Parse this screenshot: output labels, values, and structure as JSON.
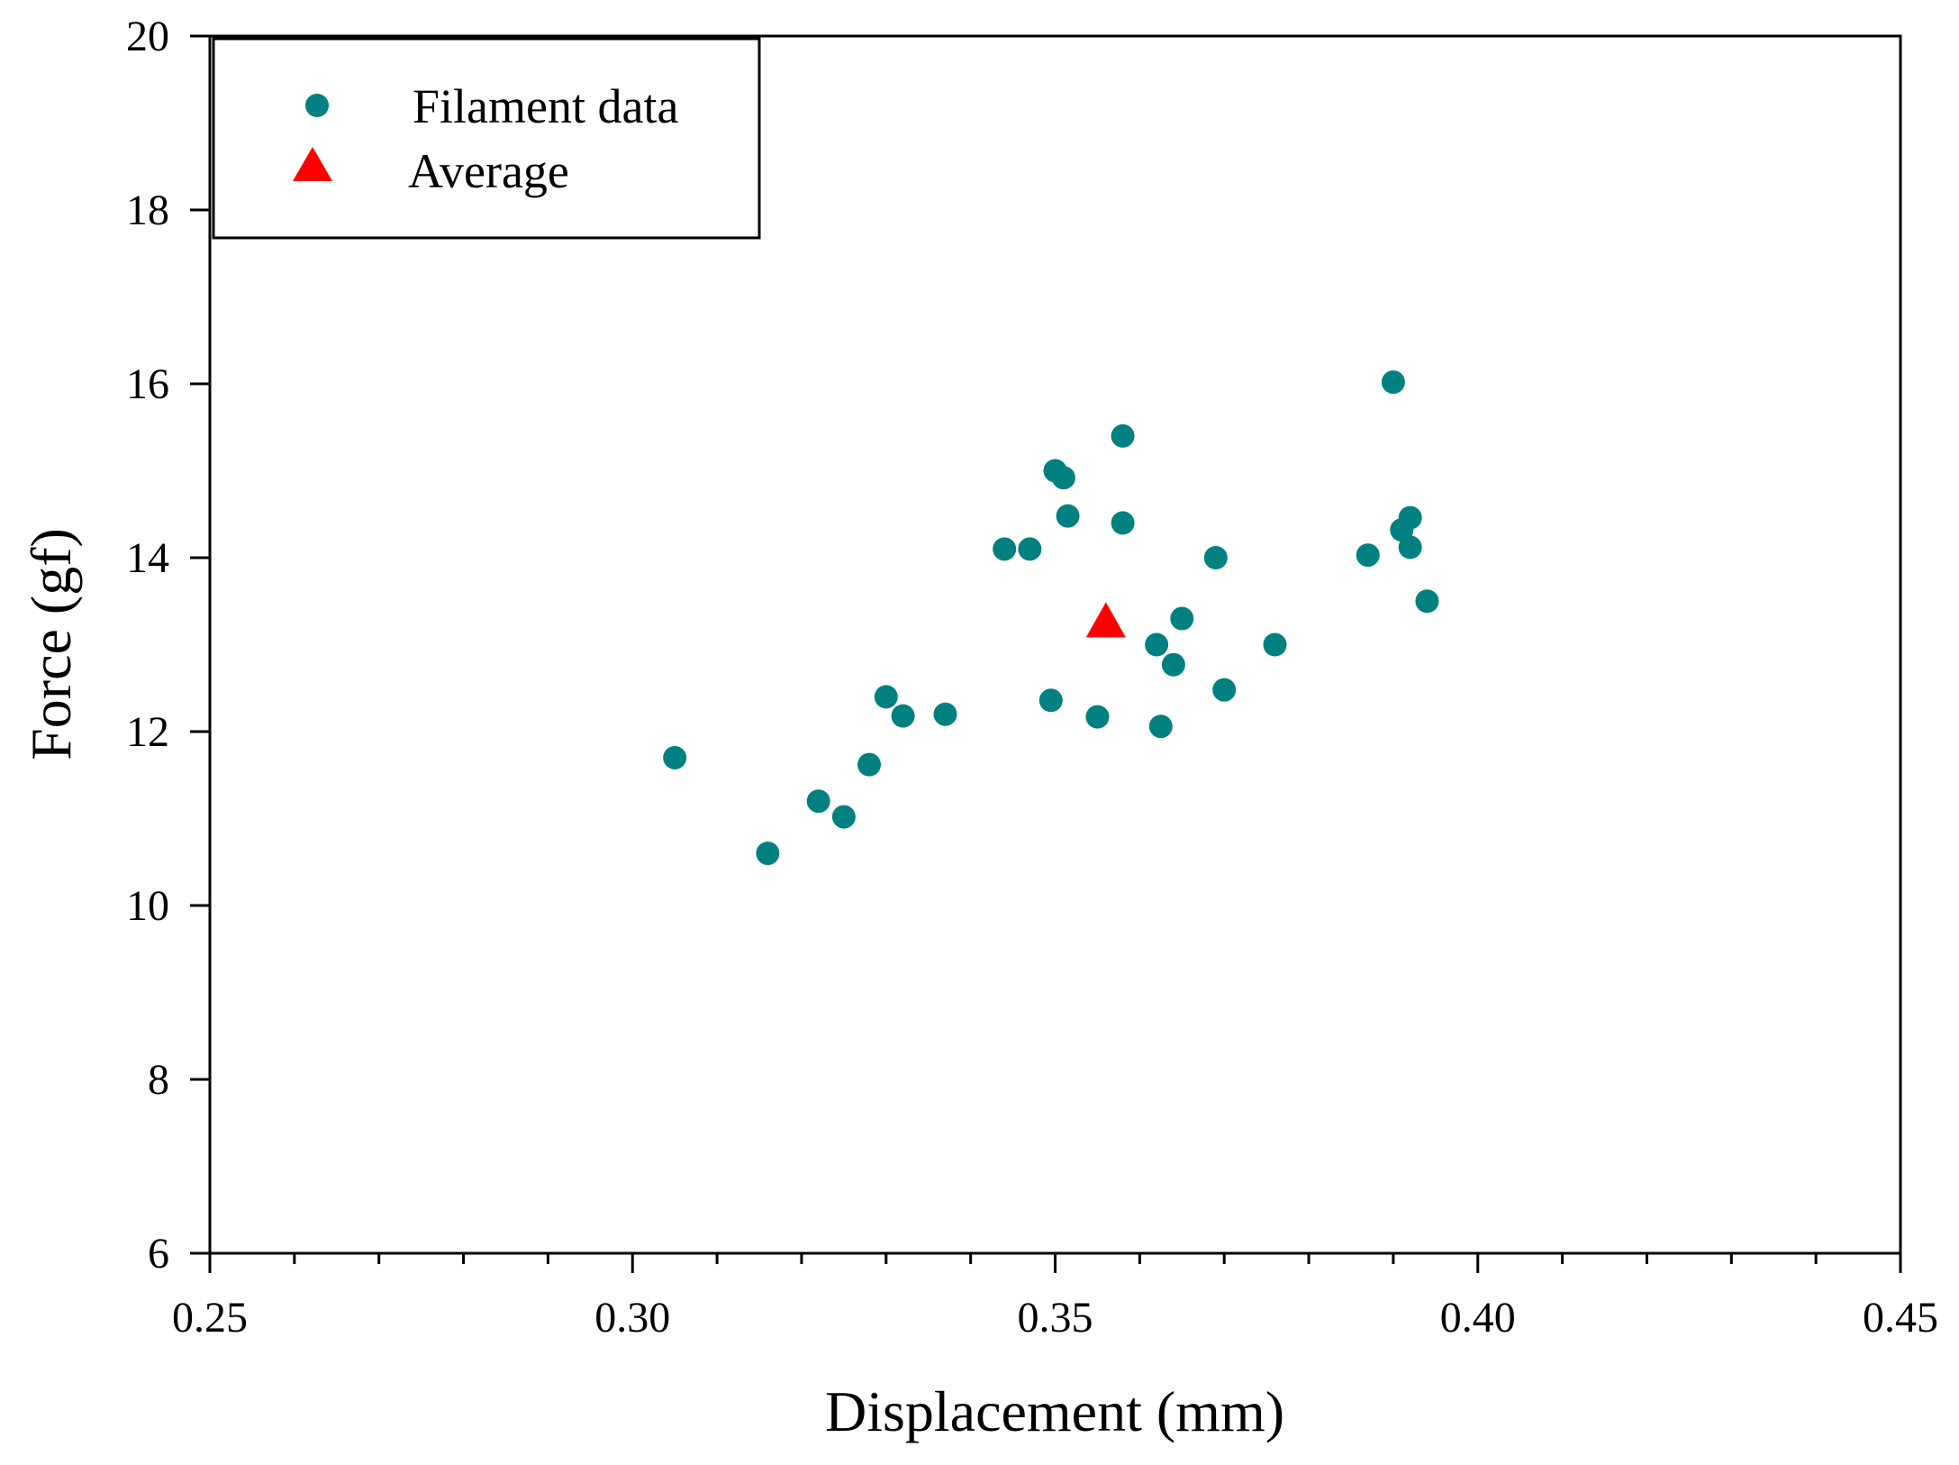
{
  "chart_data": {
    "type": "scatter",
    "title": "",
    "xlabel": "Displacement (mm)",
    "ylabel": "Force (gf)",
    "xlim": [
      0.25,
      0.45
    ],
    "ylim": [
      6,
      20
    ],
    "x_ticks": [
      0.25,
      0.3,
      0.35,
      0.4,
      0.45
    ],
    "x_tick_labels": [
      "0.25",
      "0.30",
      "0.35",
      "0.40",
      "0.45"
    ],
    "x_minor_step": 0.01,
    "y_ticks": [
      6,
      8,
      10,
      12,
      14,
      16,
      18,
      20
    ],
    "y_tick_labels": [
      "6",
      "8",
      "10",
      "12",
      "14",
      "16",
      "18",
      "20"
    ],
    "grid": false,
    "legend_position": "top-left",
    "series": [
      {
        "name": "Filament data",
        "marker": "circle",
        "color": "#008080",
        "points": [
          [
            0.305,
            11.7
          ],
          [
            0.316,
            10.6
          ],
          [
            0.322,
            11.2
          ],
          [
            0.325,
            11.02
          ],
          [
            0.328,
            11.62
          ],
          [
            0.33,
            12.4
          ],
          [
            0.332,
            12.18
          ],
          [
            0.337,
            12.2
          ],
          [
            0.344,
            14.1
          ],
          [
            0.347,
            14.1
          ],
          [
            0.35,
            15.0
          ],
          [
            0.351,
            14.92
          ],
          [
            0.3515,
            14.48
          ],
          [
            0.3495,
            12.36
          ],
          [
            0.355,
            12.17
          ],
          [
            0.358,
            15.4
          ],
          [
            0.358,
            14.4
          ],
          [
            0.362,
            13.0
          ],
          [
            0.3625,
            12.06
          ],
          [
            0.364,
            12.77
          ],
          [
            0.365,
            13.3
          ],
          [
            0.369,
            14.0
          ],
          [
            0.37,
            12.48
          ],
          [
            0.376,
            13.0
          ],
          [
            0.387,
            14.03
          ],
          [
            0.39,
            16.02
          ],
          [
            0.391,
            14.32
          ],
          [
            0.392,
            14.46
          ],
          [
            0.392,
            14.12
          ],
          [
            0.394,
            13.5
          ]
        ]
      },
      {
        "name": "Average",
        "marker": "triangle",
        "color": "#ff0000",
        "points": [
          [
            0.356,
            13.25
          ]
        ]
      }
    ]
  }
}
